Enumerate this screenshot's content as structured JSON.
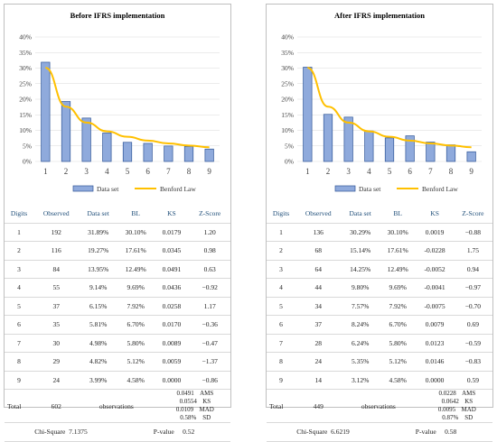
{
  "chart_data": [
    {
      "type": "bar",
      "title": "Before IFRS implementation",
      "categories": [
        "1",
        "2",
        "3",
        "4",
        "5",
        "6",
        "7",
        "8",
        "9"
      ],
      "series": [
        {
          "name": "Data set",
          "type": "bar",
          "values": [
            31.89,
            19.27,
            13.95,
            9.14,
            6.15,
            5.81,
            4.98,
            4.82,
            3.99
          ]
        },
        {
          "name": "Benford Law",
          "type": "line",
          "values": [
            30.1,
            17.61,
            12.49,
            9.69,
            7.92,
            6.7,
            5.8,
            5.12,
            4.58
          ]
        }
      ],
      "ylim": [
        0,
        40
      ],
      "yticks": [
        "0%",
        "5%",
        "10%",
        "15%",
        "20%",
        "25%",
        "30%",
        "35%",
        "40%"
      ],
      "legend": "bottom",
      "grid": true
    },
    {
      "type": "bar",
      "title": "After IFRS implementation",
      "categories": [
        "1",
        "2",
        "3",
        "4",
        "5",
        "6",
        "7",
        "8",
        "9"
      ],
      "series": [
        {
          "name": "Data set",
          "type": "bar",
          "values": [
            30.29,
            15.14,
            14.25,
            9.8,
            7.57,
            8.24,
            6.24,
            5.35,
            3.12
          ]
        },
        {
          "name": "Benford Law",
          "type": "line",
          "values": [
            30.1,
            17.61,
            12.49,
            9.69,
            7.92,
            6.7,
            5.8,
            5.12,
            4.58
          ]
        }
      ],
      "ylim": [
        0,
        40
      ],
      "yticks": [
        "0%",
        "5%",
        "10%",
        "15%",
        "20%",
        "25%",
        "30%",
        "35%",
        "40%"
      ],
      "legend": "bottom",
      "grid": true
    }
  ],
  "colors": {
    "bar_fill": "#8faadc",
    "bar_stroke": "#2f5597",
    "line": "#ffc000",
    "grid": "#d9d9d9",
    "header": "#1f4e79"
  },
  "tables": [
    {
      "headers": [
        "Digits",
        "Observed",
        "Data set",
        "BL",
        "KS",
        "Z-Score"
      ],
      "rows": [
        [
          "1",
          "192",
          "31.89%",
          "30.10%",
          "0.0179",
          "1.20"
        ],
        [
          "2",
          "116",
          "19.27%",
          "17.61%",
          "0.0345",
          "0.98"
        ],
        [
          "3",
          "84",
          "13.95%",
          "12.49%",
          "0.0491",
          "0.63"
        ],
        [
          "4",
          "55",
          "9.14%",
          "9.69%",
          "0.0436",
          "−0.92"
        ],
        [
          "5",
          "37",
          "6.15%",
          "7.92%",
          "0.0258",
          "1.17"
        ],
        [
          "6",
          "35",
          "5.81%",
          "6.70%",
          "0.0170",
          "−0.36"
        ],
        [
          "7",
          "30",
          "4.98%",
          "5.80%",
          "0.0089",
          "−0.47"
        ],
        [
          "8",
          "29",
          "4.82%",
          "5.12%",
          "0.0059",
          "−1.37"
        ],
        [
          "9",
          "24",
          "3.99%",
          "4.58%",
          "0.0000",
          "−0.86"
        ]
      ],
      "bold_ks_row": 2,
      "total_label": "Total",
      "total_value": "602",
      "total_unit": "observations",
      "summary": [
        {
          "value": "0.0491",
          "label": "AMS"
        },
        {
          "value": "0.0554",
          "label": "KS"
        },
        {
          "value": "0.0109",
          "label": "MAD"
        },
        {
          "value": "0.58%",
          "label": "SD"
        }
      ],
      "chi_label": "Chi-Square",
      "chi_value": "7.1375",
      "p_label": "P-value",
      "p_value": "0.52"
    },
    {
      "headers": [
        "Digits",
        "Observed",
        "Data set",
        "BL",
        "KS",
        "Z-Score"
      ],
      "rows": [
        [
          "1",
          "136",
          "30.29%",
          "30.10%",
          "0.0019",
          "−0.88"
        ],
        [
          "2",
          "68",
          "15.14%",
          "17.61%",
          "-0.0228",
          "1.75"
        ],
        [
          "3",
          "64",
          "14.25%",
          "12.49%",
          "-0.0052",
          "0.94"
        ],
        [
          "4",
          "44",
          "9.80%",
          "9.69%",
          "-0.0041",
          "−0.97"
        ],
        [
          "5",
          "34",
          "7.57%",
          "7.92%",
          "-0.0075",
          "−0.70"
        ],
        [
          "6",
          "37",
          "8.24%",
          "6.70%",
          "0.0079",
          "0.69"
        ],
        [
          "7",
          "28",
          "6.24%",
          "5.80%",
          "0.0123",
          "−0.59"
        ],
        [
          "8",
          "24",
          "5.35%",
          "5.12%",
          "0.0146",
          "−0.83"
        ],
        [
          "9",
          "14",
          "3.12%",
          "4.58%",
          "0.0000",
          "0.59"
        ]
      ],
      "bold_ks_row": 1,
      "total_label": "Total",
      "total_value": "449",
      "total_unit": "observations",
      "summary": [
        {
          "value": "0.0228",
          "label": "AMS"
        },
        {
          "value": "0.0642",
          "label": "KS"
        },
        {
          "value": "0.0095",
          "label": "MAD"
        },
        {
          "value": "0.87%",
          "label": "SD"
        }
      ],
      "chi_label": "Chi-Square",
      "chi_value": "6.6219",
      "p_label": "P-value",
      "p_value": "0.58"
    }
  ]
}
